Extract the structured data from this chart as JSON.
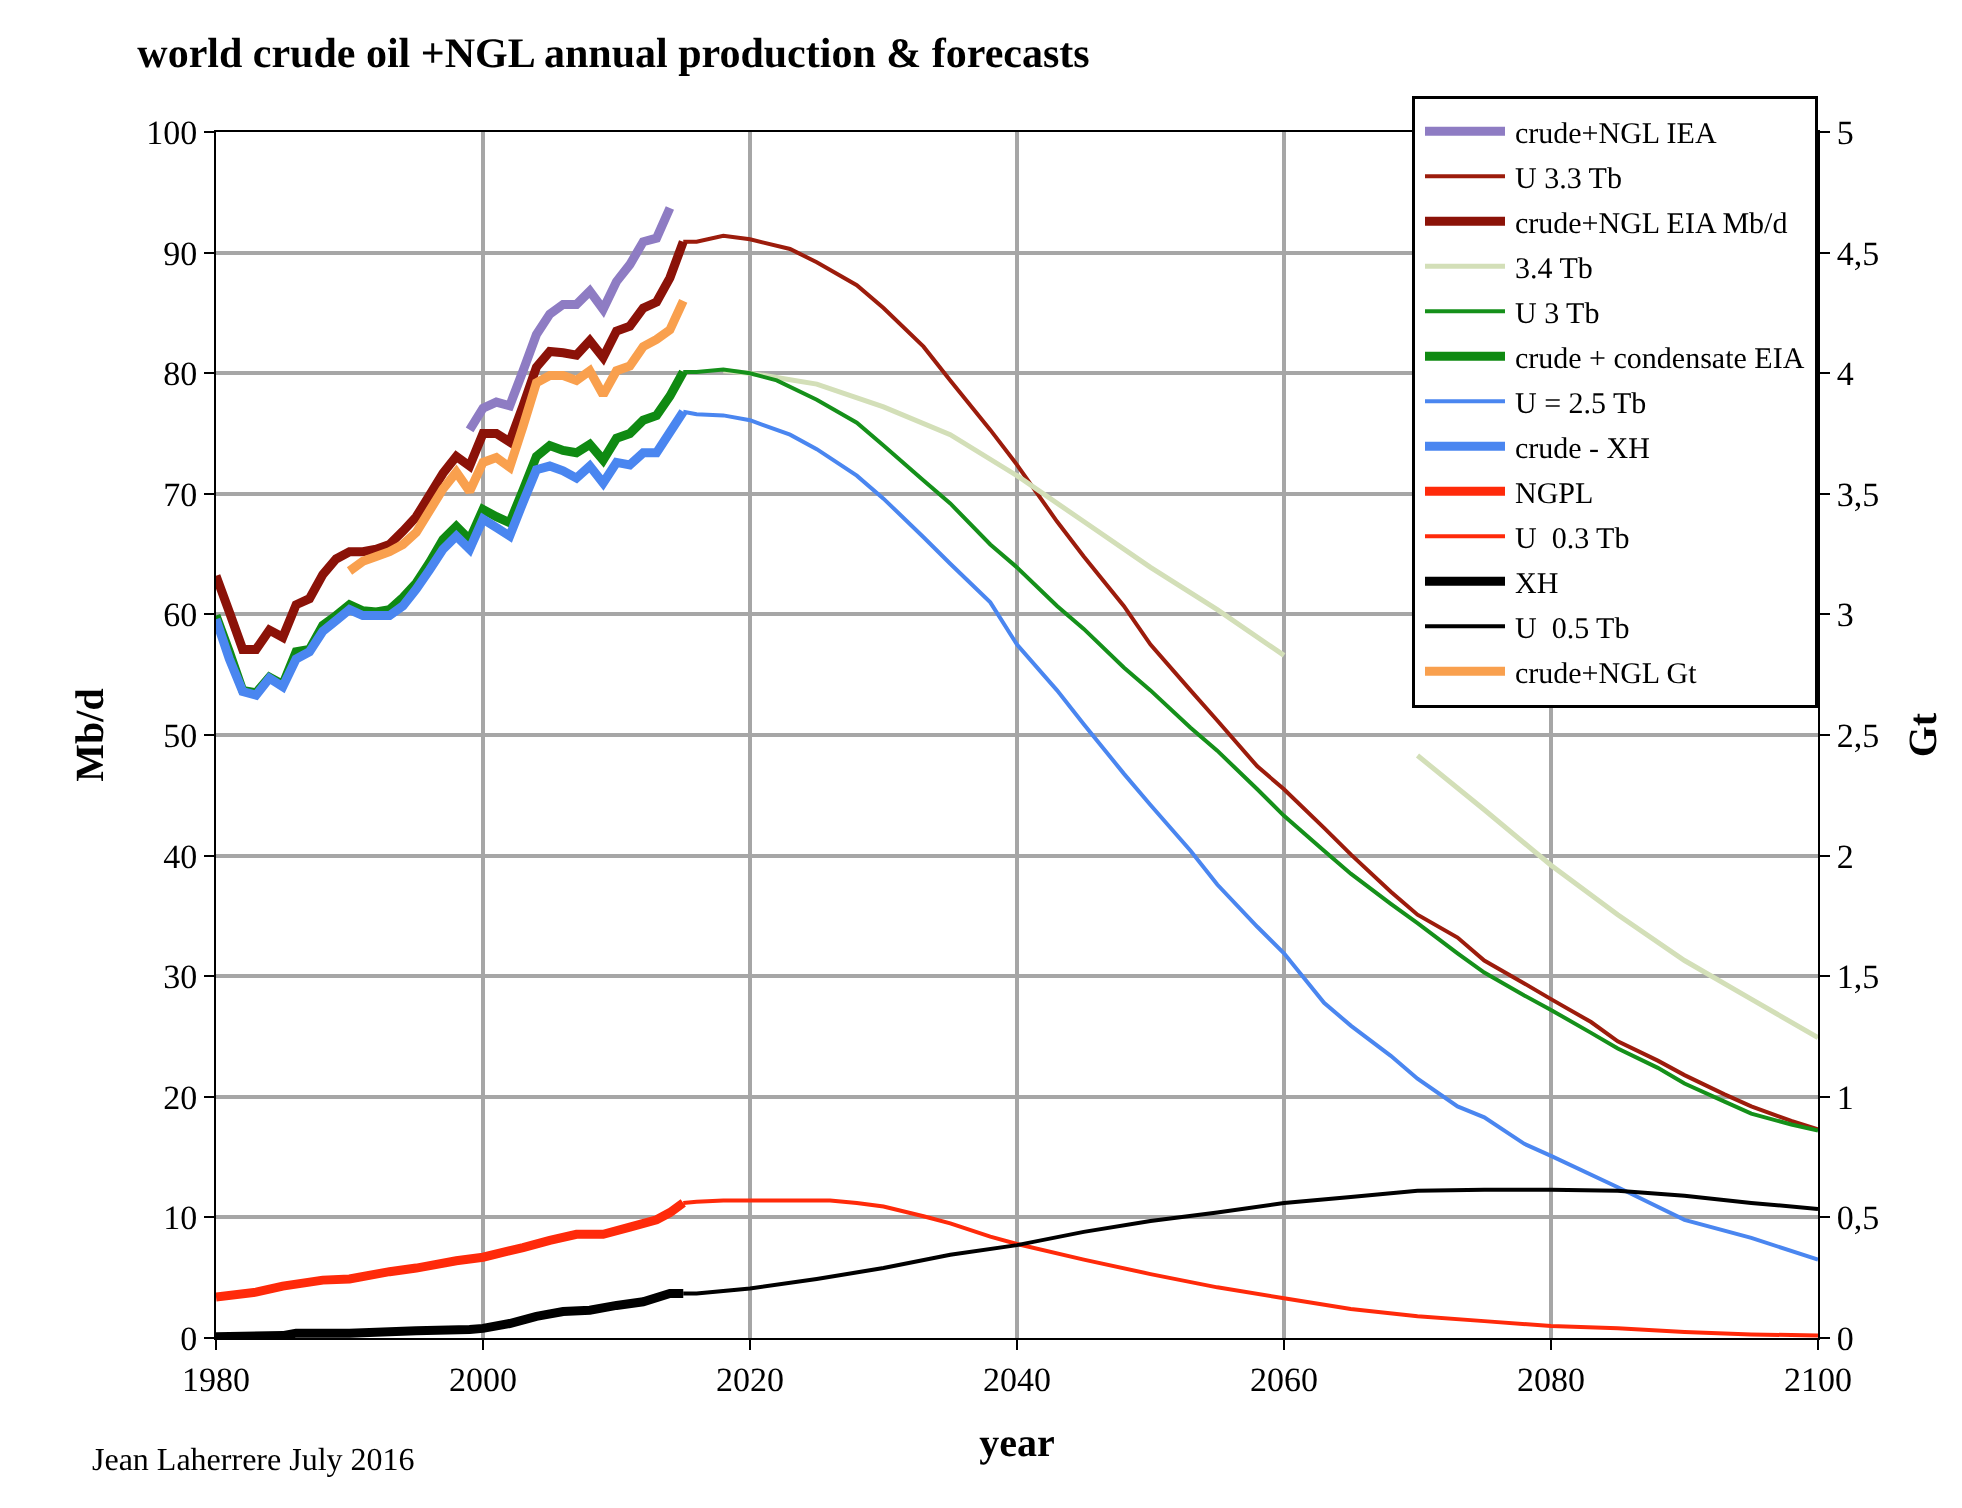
{
  "chart_data": {
    "type": "line",
    "title": "world crude oil +NGL annual production & forecasts",
    "xlabel": "year",
    "ylabel": "Mb/d",
    "y2label": "Gt",
    "annotations": [
      "Jean Laherrere July 2016"
    ],
    "xlim": [
      1980,
      2100
    ],
    "xticks": [
      1980,
      2000,
      2020,
      2040,
      2060,
      2080,
      2100
    ],
    "ylim": [
      0,
      100
    ],
    "yticks": [
      0,
      10,
      20,
      30,
      40,
      50,
      60,
      70,
      80,
      90,
      100
    ],
    "y2lim": [
      0,
      5
    ],
    "y2ticks": [
      0,
      {
        "value": 0.5,
        "label": "0,5"
      },
      1,
      {
        "value": 1.5,
        "label": "1,5"
      },
      2,
      {
        "value": 2.5,
        "label": "2,5"
      },
      3,
      {
        "value": 3.5,
        "label": "3,5"
      },
      4,
      {
        "value": 4.5,
        "label": "4,5"
      },
      5
    ],
    "grid": true,
    "legend": "top right",
    "marker": "none",
    "line_style": "solid",
    "series": [
      {
        "name": "crude+NGL IEA",
        "color": "#8e7cc3",
        "x": [
          1999,
          2000,
          2001,
          2002,
          2003,
          2004,
          2005,
          2006,
          2007,
          2008,
          2009,
          2010,
          2011,
          2012,
          2013,
          2014
        ],
        "values": [
          75.3,
          77.1,
          77.6,
          77.3,
          80.2,
          83.2,
          84.9,
          85.7,
          85.7,
          86.8,
          85.3,
          87.6,
          89.0,
          90.9,
          91.2,
          93.7
        ]
      },
      {
        "name": "U 3.3 Tb",
        "color": "#9c1c0c",
        "x": [
          2015,
          2016,
          2018,
          2020,
          2023,
          2025,
          2028,
          2030,
          2033,
          2035,
          2038,
          2040,
          2043,
          2045,
          2048,
          2050,
          2053,
          2055,
          2058,
          2060,
          2063,
          2065,
          2068,
          2070,
          2073,
          2075,
          2078,
          2080,
          2083,
          2085,
          2088,
          2090,
          2093,
          2095,
          2098,
          2100
        ],
        "values": [
          90.9,
          90.9,
          91.4,
          91.1,
          90.3,
          89.2,
          87.3,
          85.4,
          82.2,
          79.4,
          75.3,
          72.4,
          67.7,
          64.8,
          60.7,
          57.5,
          53.7,
          51.2,
          47.4,
          45.5,
          42.3,
          40.1,
          37.0,
          35.1,
          33.2,
          31.3,
          29.4,
          28.1,
          26.2,
          24.6,
          23.0,
          21.8,
          20.2,
          19.2,
          18.0,
          17.3
        ]
      },
      {
        "name": "crude+NGL EIA Mb/d",
        "color": "#8b1208",
        "x": [
          1980,
          1981,
          1982,
          1983,
          1984,
          1985,
          1986,
          1987,
          1988,
          1989,
          1990,
          1991,
          1992,
          1993,
          1994,
          1995,
          1996,
          1997,
          1998,
          1999,
          2000,
          2001,
          2002,
          2003,
          2004,
          2005,
          2006,
          2007,
          2008,
          2009,
          2010,
          2011,
          2012,
          2013,
          2014,
          2015
        ],
        "values": [
          63.2,
          60.2,
          57.1,
          57.1,
          58.7,
          58.1,
          60.8,
          61.3,
          63.3,
          64.6,
          65.2,
          65.2,
          65.4,
          65.8,
          66.9,
          68.1,
          69.9,
          71.7,
          73.1,
          72.3,
          75.0,
          75.0,
          74.3,
          77.3,
          80.5,
          81.8,
          81.7,
          81.5,
          82.7,
          81.3,
          83.5,
          83.9,
          85.4,
          85.9,
          87.9,
          90.9
        ]
      },
      {
        "name": "3.4 Tb",
        "color": "#d3dfb8",
        "x": [
          2018,
          2020,
          2025,
          2030,
          2035,
          2040,
          2045,
          2050,
          2055,
          2060,
          2065,
          2070,
          2075,
          2080,
          2085,
          2090,
          2095,
          2100
        ],
        "values": [
          80.2,
          80.0,
          79.1,
          77.2,
          74.9,
          71.5,
          67.7,
          63.9,
          60.4,
          56.6,
          null,
          48.3,
          43.8,
          39.2,
          35.1,
          31.3,
          28.1,
          24.9
        ]
      },
      {
        "name": "U 3 Tb",
        "color": "#15901a",
        "x": [
          2015,
          2016,
          2018,
          2020,
          2022,
          2025,
          2028,
          2030,
          2033,
          2035,
          2038,
          2040,
          2043,
          2045,
          2048,
          2050,
          2053,
          2055,
          2058,
          2060,
          2063,
          2065,
          2068,
          2070,
          2073,
          2075,
          2078,
          2080,
          2083,
          2085,
          2088,
          2090,
          2093,
          2095,
          2098,
          2100
        ],
        "values": [
          80.1,
          80.1,
          80.3,
          80.0,
          79.4,
          77.8,
          75.9,
          74.0,
          71.1,
          69.2,
          65.8,
          63.9,
          60.7,
          58.8,
          55.6,
          53.7,
          50.6,
          48.7,
          45.5,
          43.3,
          40.4,
          38.5,
          36.0,
          34.4,
          31.9,
          30.3,
          28.4,
          27.2,
          25.3,
          24.0,
          22.4,
          21.1,
          19.6,
          18.6,
          17.7,
          17.2
        ]
      },
      {
        "name": "crude + condensate EIA",
        "color": "#0f8a12",
        "x": [
          1980,
          1981,
          1982,
          1983,
          1984,
          1985,
          1986,
          1987,
          1988,
          1989,
          1990,
          1991,
          1992,
          1993,
          1994,
          1995,
          1996,
          1997,
          1998,
          1999,
          2000,
          2001,
          2002,
          2003,
          2004,
          2005,
          2006,
          2007,
          2008,
          2009,
          2010,
          2011,
          2012,
          2013,
          2014,
          2015
        ],
        "values": [
          59.9,
          56.9,
          53.7,
          53.5,
          54.8,
          54.2,
          56.9,
          57.1,
          59.1,
          59.9,
          60.8,
          60.3,
          60.2,
          60.4,
          61.4,
          62.6,
          64.3,
          66.2,
          67.3,
          66.2,
          68.7,
          68.1,
          67.6,
          70.3,
          73.1,
          74.0,
          73.6,
          73.4,
          74.1,
          72.8,
          74.6,
          75.0,
          76.1,
          76.5,
          78.1,
          80.1
        ]
      },
      {
        "name": "U = 2.5 Tb",
        "color": "#4a86f0",
        "x": [
          2015,
          2016,
          2018,
          2020,
          2023,
          2025,
          2028,
          2030,
          2033,
          2035,
          2038,
          2040,
          2043,
          2045,
          2048,
          2050,
          2053,
          2055,
          2058,
          2060,
          2063,
          2065,
          2068,
          2070,
          2073,
          2075,
          2078,
          2080,
          2085,
          2090,
          2095,
          2100
        ],
        "values": [
          76.8,
          76.6,
          76.5,
          76.1,
          74.9,
          73.7,
          71.5,
          69.6,
          66.4,
          64.2,
          61.0,
          57.5,
          53.7,
          50.9,
          46.8,
          44.2,
          40.4,
          37.6,
          34.1,
          31.9,
          27.8,
          25.9,
          23.4,
          21.5,
          19.2,
          18.3,
          16.1,
          15.1,
          12.5,
          9.8,
          8.3,
          6.5
        ]
      },
      {
        "name": "crude - XH",
        "color": "#4a86f0",
        "x": [
          1980,
          1981,
          1982,
          1983,
          1984,
          1985,
          1986,
          1987,
          1988,
          1989,
          1990,
          1991,
          1992,
          1993,
          1994,
          1995,
          1996,
          1997,
          1998,
          1999,
          2000,
          2001,
          2002,
          2003,
          2004,
          2005,
          2006,
          2007,
          2008,
          2009,
          2010,
          2011,
          2012,
          2013,
          2014,
          2015
        ],
        "values": [
          59.6,
          56.3,
          53.6,
          53.3,
          54.7,
          54.0,
          56.3,
          56.9,
          58.6,
          59.5,
          60.4,
          59.9,
          59.9,
          59.9,
          60.7,
          62.1,
          63.7,
          65.4,
          66.5,
          65.4,
          67.9,
          67.2,
          66.5,
          69.3,
          72.0,
          72.3,
          71.9,
          71.3,
          72.3,
          70.9,
          72.6,
          72.4,
          73.4,
          73.4,
          75.1,
          76.8
        ]
      },
      {
        "name": "NGPL",
        "color": "#ff2a0a",
        "x": [
          1980,
          1983,
          1985,
          1988,
          1990,
          1993,
          1995,
          1998,
          2000,
          2003,
          2005,
          2007,
          2009,
          2011,
          2013,
          2014,
          2015
        ],
        "values": [
          3.4,
          3.8,
          4.3,
          4.8,
          4.9,
          5.5,
          5.8,
          6.4,
          6.7,
          7.5,
          8.1,
          8.6,
          8.6,
          9.2,
          9.8,
          10.4,
          11.2
        ]
      },
      {
        "name": "U  0.3 Tb",
        "color": "#ff2a0a",
        "x": [
          2015,
          2016,
          2018,
          2020,
          2023,
          2026,
          2028,
          2030,
          2033,
          2035,
          2038,
          2040,
          2045,
          2050,
          2055,
          2060,
          2065,
          2070,
          2075,
          2080,
          2085,
          2090,
          2095,
          2100
        ],
        "values": [
          11.2,
          11.3,
          11.4,
          11.4,
          11.4,
          11.4,
          11.2,
          10.9,
          10.1,
          9.5,
          8.4,
          7.8,
          6.5,
          5.3,
          4.2,
          3.3,
          2.4,
          1.8,
          1.4,
          1.0,
          0.8,
          0.5,
          0.3,
          0.2
        ]
      },
      {
        "name": "XH",
        "color": "#000000",
        "x": [
          1980,
          1985,
          1986,
          1990,
          1995,
          1999,
          2000,
          2002,
          2004,
          2006,
          2008,
          2010,
          2012,
          2014,
          2015
        ],
        "values": [
          0.1,
          0.2,
          0.4,
          0.4,
          0.6,
          0.7,
          0.8,
          1.2,
          1.8,
          2.2,
          2.3,
          2.7,
          3.0,
          3.7,
          3.7
        ]
      },
      {
        "name": "U  0.5 Tb",
        "color": "#000000",
        "x": [
          2015,
          2016,
          2020,
          2025,
          2030,
          2035,
          2040,
          2045,
          2050,
          2055,
          2060,
          2065,
          2070,
          2075,
          2080,
          2085,
          2090,
          2095,
          2100
        ],
        "values": [
          3.7,
          3.7,
          4.1,
          4.9,
          5.8,
          6.9,
          7.7,
          8.8,
          9.7,
          10.4,
          11.2,
          11.7,
          12.2,
          12.3,
          12.3,
          12.2,
          11.8,
          11.2,
          10.7
        ]
      },
      {
        "name": "crude+NGL Gt",
        "color": "#f9a04e",
        "axis": "y2",
        "x": [
          1990,
          1991,
          1992,
          1993,
          1994,
          1995,
          1996,
          1997,
          1998,
          1999,
          2000,
          2001,
          2002,
          2003,
          2004,
          2005,
          2006,
          2007,
          2008,
          2009,
          2010,
          2011,
          2012,
          2013,
          2014,
          2015
        ],
        "values": [
          3.18,
          3.22,
          3.24,
          3.26,
          3.29,
          3.34,
          3.43,
          3.52,
          3.59,
          3.51,
          3.63,
          3.65,
          3.61,
          3.78,
          3.96,
          3.99,
          3.99,
          3.97,
          4.01,
          3.91,
          4.01,
          4.03,
          4.11,
          4.14,
          4.18,
          4.3
        ]
      }
    ]
  }
}
